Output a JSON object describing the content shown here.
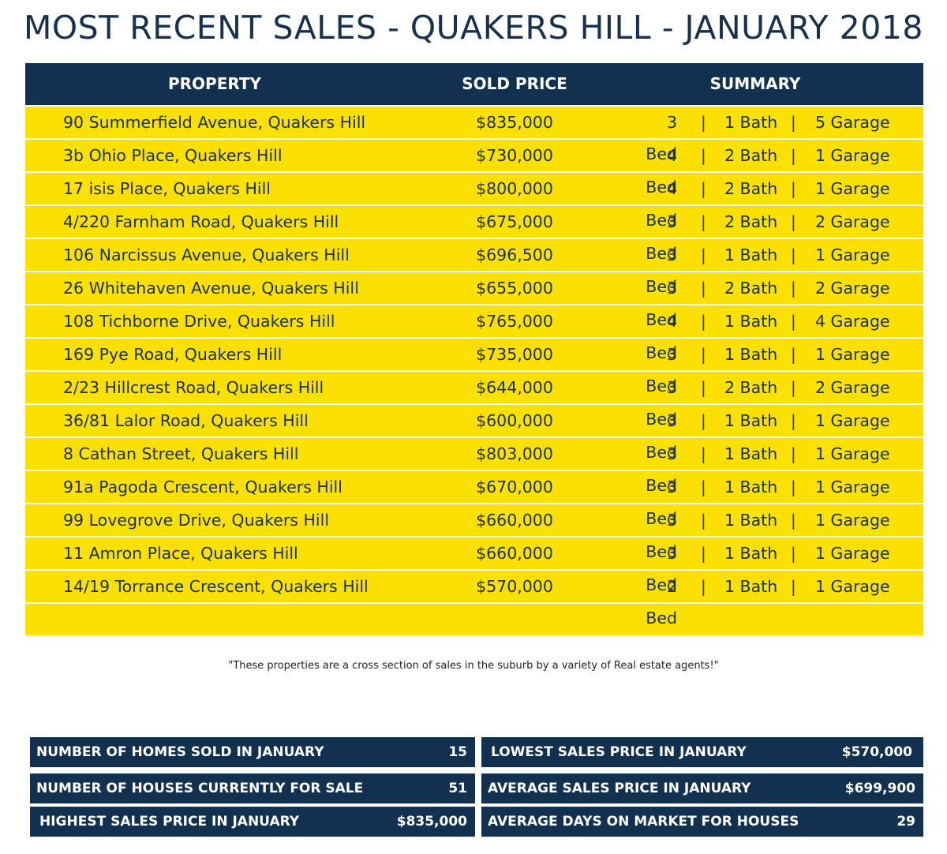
{
  "title": "MOST RECENT SALES - QUAKERS HILL - JANUARY 2018",
  "headers": {
    "property": "PROPERTY",
    "sold_price": "SOLD PRICE",
    "summary": "SUMMARY"
  },
  "separator": "|",
  "rows": [
    {
      "address": "90 Summerfield Avenue, Quakers Hill",
      "price": "$835,000",
      "bed": "3 Bed",
      "bath": "1 Bath",
      "garage": "5 Garage"
    },
    {
      "address": "3b Ohio Place, Quakers Hill",
      "price": "$730,000",
      "bed": "4 Bed",
      "bath": "2 Bath",
      "garage": "1 Garage"
    },
    {
      "address": "17 isis Place, Quakers Hill",
      "price": "$800,000",
      "bed": "4 Bed",
      "bath": "2 Bath",
      "garage": "1 Garage"
    },
    {
      "address": "4/220 Farnham Road, Quakers Hill",
      "price": "$675,000",
      "bed": "3 Bed",
      "bath": "2 Bath",
      "garage": "2 Garage"
    },
    {
      "address": "106 Narcissus Avenue, Quakers Hill",
      "price": "$696,500",
      "bed": "3 Bed",
      "bath": "1 Bath",
      "garage": "1 Garage"
    },
    {
      "address": "26 Whitehaven Avenue, Quakers Hill",
      "price": "$655,000",
      "bed": "3 Bed",
      "bath": "2 Bath",
      "garage": "2 Garage"
    },
    {
      "address": "108 Tichborne Drive, Quakers Hill",
      "price": "$765,000",
      "bed": "4 Bed",
      "bath": "1 Bath",
      "garage": "4 Garage"
    },
    {
      "address": "169 Pye Road, Quakers Hill",
      "price": "$735,000",
      "bed": "3 Bed",
      "bath": "1 Bath",
      "garage": "1 Garage"
    },
    {
      "address": "2/23 Hillcrest Road, Quakers Hill",
      "price": "$644,000",
      "bed": "3 Bed",
      "bath": "2 Bath",
      "garage": "2 Garage"
    },
    {
      "address": "36/81 Lalor Road, Quakers Hill",
      "price": "$600,000",
      "bed": "3 Bed",
      "bath": "1 Bath",
      "garage": "1 Garage"
    },
    {
      "address": "8 Cathan Street, Quakers Hill",
      "price": "$803,000",
      "bed": "3 Bed",
      "bath": "1 Bath",
      "garage": "1 Garage"
    },
    {
      "address": "91a Pagoda Crescent, Quakers Hill",
      "price": "$670,000",
      "bed": "3 Bed",
      "bath": "1 Bath",
      "garage": "1 Garage"
    },
    {
      "address": "99 Lovegrove Drive, Quakers Hill",
      "price": "$660,000",
      "bed": "3 Bed",
      "bath": "1 Bath",
      "garage": "1 Garage"
    },
    {
      "address": "11 Amron Place, Quakers Hill",
      "price": "$660,000",
      "bed": "3 Bed",
      "bath": "1 Bath",
      "garage": "1 Garage"
    },
    {
      "address": "14/19 Torrance Crescent, Quakers Hill",
      "price": "$570,000",
      "bed": "2 Bed",
      "bath": "1 Bath",
      "garage": "1 Garage"
    }
  ],
  "note": "\"These properties are a cross section of sales in the suburb by a variety of Real estate agents!\"",
  "stats": {
    "homes_sold": {
      "label": "NUMBER OF HOMES SOLD IN JANUARY",
      "value": "15"
    },
    "houses_for_sale": {
      "label": "NUMBER OF HOUSES CURRENTLY FOR SALE",
      "value": "51"
    },
    "highest_price": {
      "label": "HIGHEST SALES PRICE IN JANUARY",
      "value": "$835,000"
    },
    "lowest_price": {
      "label": "LOWEST SALES PRICE IN JANUARY",
      "value": "$570,000"
    },
    "average_price": {
      "label": "AVERAGE SALES PRICE IN JANUARY",
      "value": "$699,900"
    },
    "average_days": {
      "label": "AVERAGE DAYS ON MARKET FOR HOUSES",
      "value": "29"
    }
  },
  "colors": {
    "navy": "#12304f",
    "yellow": "#fce000"
  }
}
